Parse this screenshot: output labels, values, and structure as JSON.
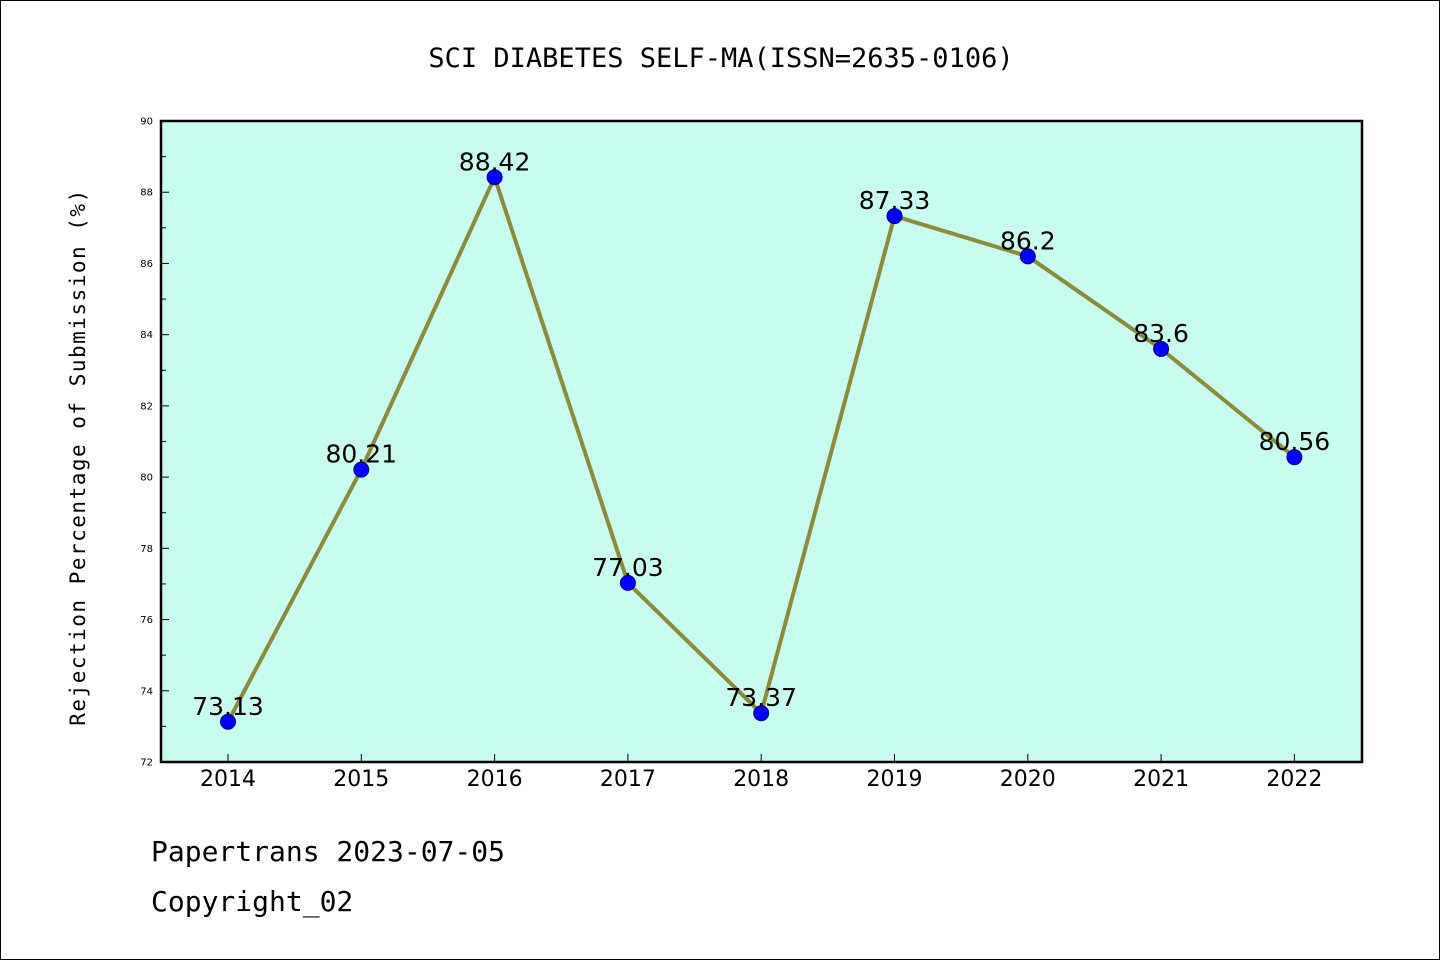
{
  "chart_data": {
    "type": "line",
    "title": "SCI DIABETES SELF-MA(ISSN=2635-0106)",
    "xlabel": "",
    "ylabel": "Rejection Percentage of Submission (%)",
    "categories": [
      "2014",
      "2015",
      "2016",
      "2017",
      "2018",
      "2019",
      "2020",
      "2021",
      "2022"
    ],
    "values": [
      73.13,
      80.21,
      88.42,
      77.03,
      73.37,
      87.33,
      86.2,
      83.6,
      80.56
    ],
    "data_labels": [
      "73.13",
      "80.21",
      "88.42",
      "77.03",
      "73.37",
      "87.33",
      "86.2",
      "83.6",
      "80.56"
    ],
    "ylim": [
      72,
      90
    ],
    "yticks": [
      72,
      74,
      76,
      78,
      80,
      82,
      84,
      86,
      88,
      90
    ],
    "grid": false,
    "legend": "none",
    "colors": {
      "plot_background": "#c8fcee",
      "line": "#8b8b3b",
      "marker": "#0000ff"
    }
  },
  "footer": {
    "line1": "Papertrans 2023-07-05",
    "line2": "Copyright_02"
  }
}
